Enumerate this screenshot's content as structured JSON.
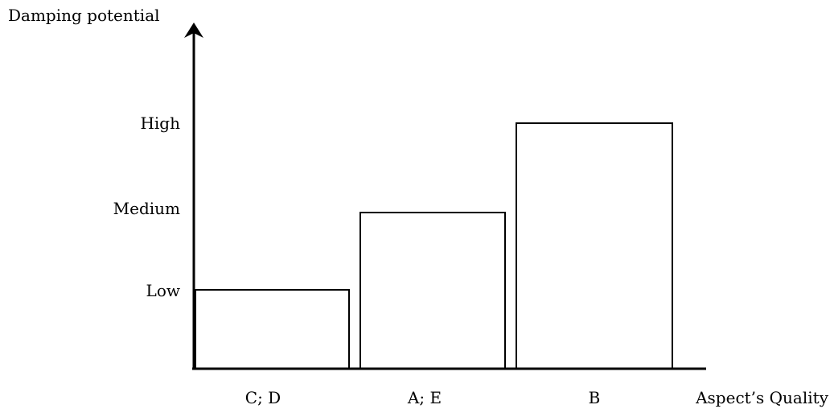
{
  "chart_data": {
    "type": "bar",
    "ylabel": "Damping potential",
    "xlabel": "Aspect’s Quality",
    "y_levels": [
      "Low",
      "Medium",
      "High"
    ],
    "categories": [
      "C; D",
      "A; E",
      "B"
    ],
    "values": [
      1,
      2,
      3
    ],
    "value_labels": [
      "Low",
      "Medium",
      "High"
    ],
    "ylim": [
      0,
      3
    ],
    "grid": false,
    "legend": "none",
    "colors": {
      "bar_fill": "#ffffff",
      "bar_stroke": "#000000",
      "axis": "#000000"
    }
  }
}
